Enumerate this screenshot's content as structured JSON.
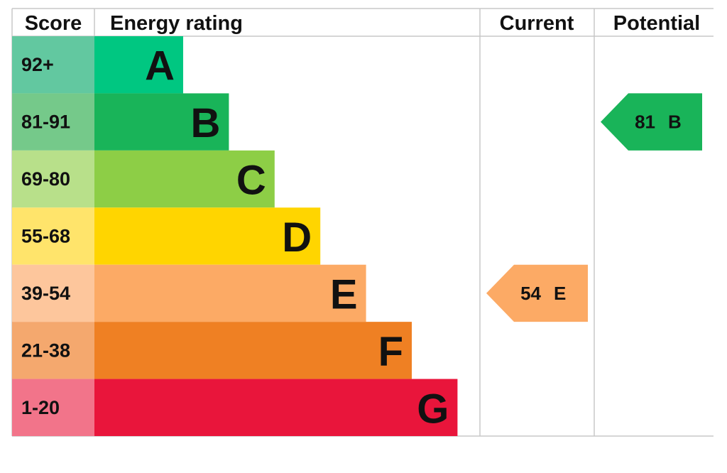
{
  "header": {
    "score": "Score",
    "energy_rating": "Energy rating",
    "current": "Current",
    "potential": "Potential"
  },
  "bands": [
    {
      "score": "92+",
      "rating": "A",
      "color": "#00c781",
      "score_color": "#62c8a0"
    },
    {
      "score": "81-91",
      "rating": "B",
      "color": "#19b459",
      "score_color": "#75c98a"
    },
    {
      "score": "69-80",
      "rating": "C",
      "color": "#8dce46",
      "score_color": "#b8e08a"
    },
    {
      "score": "55-68",
      "rating": "D",
      "color": "#ffd500",
      "score_color": "#ffe46b"
    },
    {
      "score": "39-54",
      "rating": "E",
      "color": "#fcaa65",
      "score_color": "#fdc69c"
    },
    {
      "score": "21-38",
      "rating": "F",
      "color": "#ef8023",
      "score_color": "#f4a86e"
    },
    {
      "score": "1-20",
      "rating": "G",
      "color": "#e9153b",
      "score_color": "#f2748a"
    }
  ],
  "current": {
    "value": 54,
    "rating": "E"
  },
  "potential": {
    "value": 81,
    "rating": "B"
  }
}
